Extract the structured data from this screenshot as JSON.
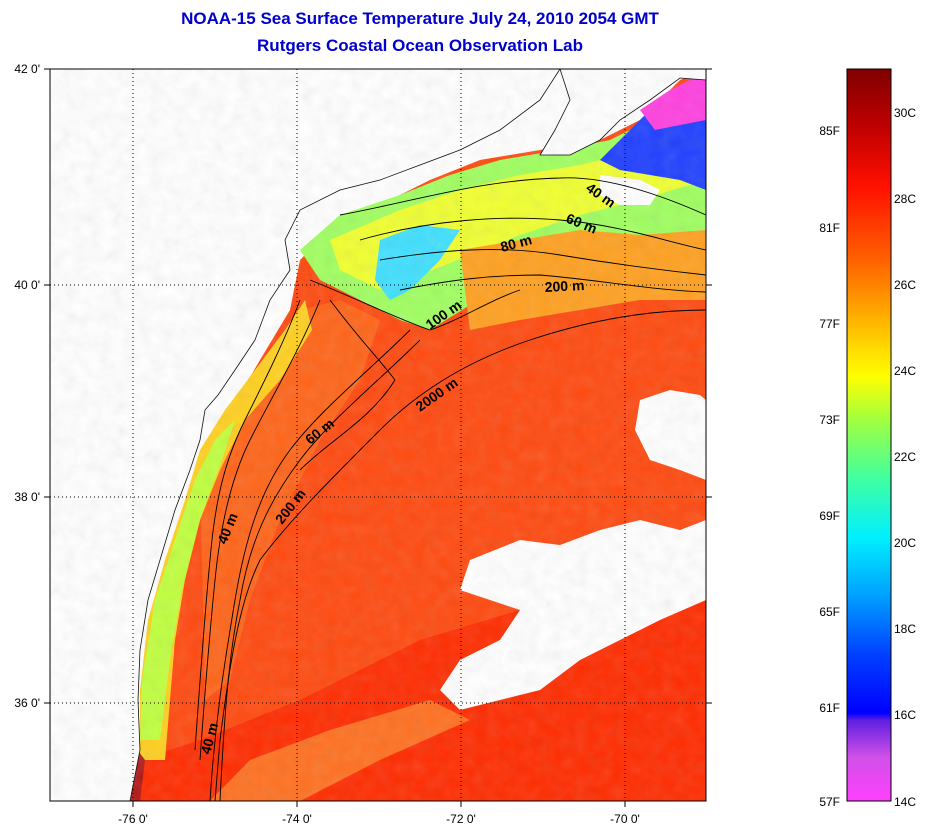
{
  "title_line1": "NOAA-15 Sea Surface Temperature July 24, 2010 2054 GMT",
  "title_line2": "Rutgers Coastal Ocean Observation Lab",
  "lat_labels": [
    "42 0'",
    "40 0'",
    "38 0'",
    "36 0'"
  ],
  "lon_labels": [
    "-76 0'",
    "-74 0'",
    "-72 0'",
    "-70 0'"
  ],
  "contour_labels": [
    "40 m",
    "60 m",
    "80 m",
    "200 m",
    "100 m",
    "2000 m",
    "60 m",
    "200 m",
    "40 m",
    "40 m"
  ],
  "colorbar": {
    "fahrenheit": [
      "85F",
      "81F",
      "77F",
      "73F",
      "69F",
      "65F",
      "61F",
      "57F"
    ],
    "celsius": [
      "30C",
      "28C",
      "26C",
      "24C",
      "22C",
      "20C",
      "18C",
      "16C",
      "14C"
    ],
    "gradient": [
      "#ff40ff",
      "#ff60f0",
      "#c050e0",
      "#8050e0",
      "#3000ff",
      "#0040ff",
      "#0090ff",
      "#00d0ff",
      "#00ffe0",
      "#40ffb0",
      "#80ff70",
      "#c0ff30",
      "#ffff00",
      "#ffd000",
      "#ffa000",
      "#ff7000",
      "#ff4000",
      "#ff1000",
      "#e00000",
      "#b00000",
      "#800000"
    ]
  },
  "colors": {
    "land": "#ffffff",
    "cloud": "#ffffff",
    "water_warm": "#ff4a10",
    "water_hot": "#ff2a00",
    "water_mid": "#ff8a20",
    "coastal_yellow": "#ffe020",
    "coastal_green": "#a0ff50",
    "cold_blue": "#2040ff",
    "cold_magenta": "#ff40e0",
    "estuary": "#a01010"
  }
}
